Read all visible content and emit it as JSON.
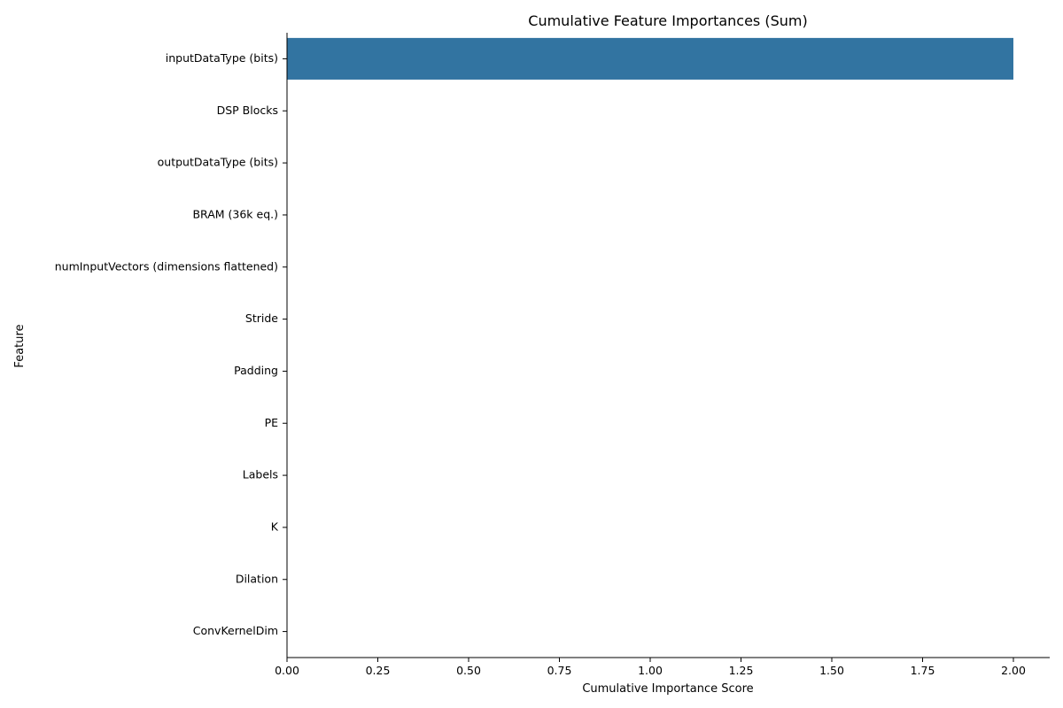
{
  "chart_data": {
    "type": "bar",
    "orientation": "horizontal",
    "title": "Cumulative Feature Importances (Sum)",
    "xlabel": "Cumulative Importance Score",
    "ylabel": "Feature",
    "categories": [
      "inputDataType (bits)",
      "DSP Blocks",
      "outputDataType (bits)",
      "BRAM (36k eq.)",
      "numInputVectors (dimensions flattened)",
      "Stride",
      "Padding",
      "PE",
      "Labels",
      "K",
      "Dilation",
      "ConvKernelDim"
    ],
    "values": [
      2.0,
      0,
      0,
      0,
      0,
      0,
      0,
      0,
      0,
      0,
      0,
      0
    ],
    "xlim": [
      0,
      2.1
    ],
    "xticks": [
      0.0,
      0.25,
      0.5,
      0.75,
      1.0,
      1.25,
      1.5,
      1.75,
      2.0
    ],
    "xtick_labels": [
      "0.00",
      "0.25",
      "0.50",
      "0.75",
      "1.00",
      "1.25",
      "1.50",
      "1.75",
      "2.00"
    ],
    "grid": false,
    "bar_color": "#3274a1"
  }
}
